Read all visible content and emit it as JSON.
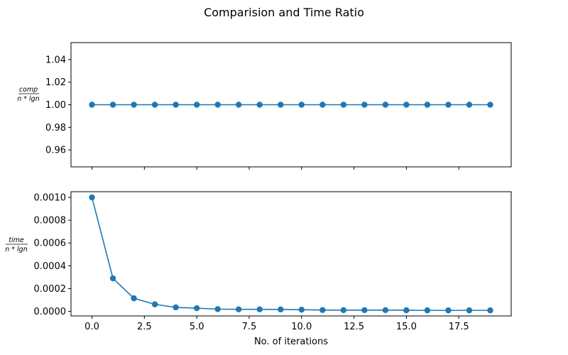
{
  "chart_data": {
    "title": "Comparision and Time Ratio",
    "xlabel": "No. of iterations",
    "x": [
      0,
      1,
      2,
      3,
      4,
      5,
      6,
      7,
      8,
      9,
      10,
      11,
      12,
      13,
      14,
      15,
      16,
      17,
      18,
      19
    ],
    "x_ticks": [
      "0.0",
      "2.5",
      "5.0",
      "7.5",
      "10.0",
      "12.5",
      "15.0",
      "17.5"
    ],
    "xlim": [
      -1.0,
      20.0
    ],
    "line_color": "#1f77b4",
    "panels": [
      {
        "type": "line",
        "ylabel_num": "comp",
        "ylabel_den": "n * lgn",
        "ylim": [
          0.945,
          1.055
        ],
        "y_ticks": [
          "0.96",
          "0.98",
          "1.00",
          "1.02",
          "1.04"
        ],
        "y_tick_values": [
          0.96,
          0.98,
          1.0,
          1.02,
          1.04
        ],
        "series": [
          {
            "values": [
              1,
              1,
              1,
              1,
              1,
              1,
              1,
              1,
              1,
              1,
              1,
              1,
              1,
              1,
              1,
              1,
              1,
              1,
              1,
              1
            ]
          }
        ]
      },
      {
        "type": "line",
        "ylabel_num": "time",
        "ylabel_den": "n * lgn",
        "ylim": [
          -4e-05,
          0.00105
        ],
        "y_ticks": [
          "0.0000",
          "0.0002",
          "0.0004",
          "0.0006",
          "0.0008",
          "0.0010"
        ],
        "y_tick_values": [
          0.0,
          0.0002,
          0.0004,
          0.0006,
          0.0008,
          0.001
        ],
        "series": [
          {
            "values": [
              0.001,
              0.00029,
              0.000115,
              6.2e-05,
              3.5e-05,
              2.8e-05,
              2e-05,
              1.8e-05,
              1.8e-05,
              1.7e-05,
              1.5e-05,
              1.2e-05,
              1.1e-05,
              1.1e-05,
              1.1e-05,
              1e-05,
              9e-06,
              9e-06,
              9e-06,
              9e-06
            ]
          }
        ]
      }
    ]
  }
}
